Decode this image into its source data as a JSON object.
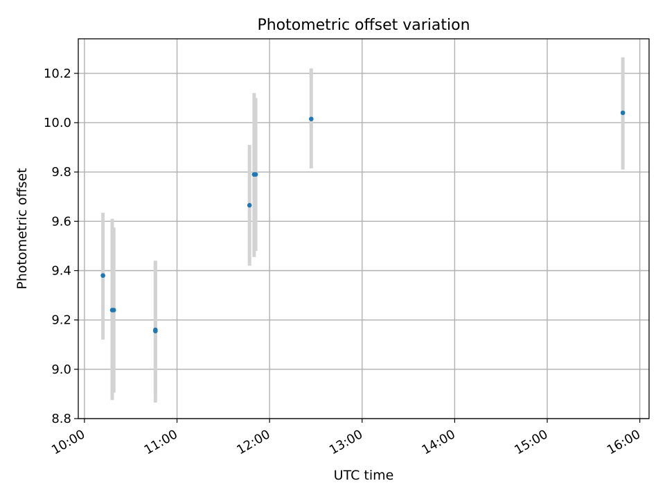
{
  "chart_data": {
    "type": "scatter",
    "title": "Photometric offset variation",
    "xlabel": "UTC time",
    "ylabel": "Photometric offset",
    "x_tick_labels": [
      "10:00",
      "11:00",
      "12:00",
      "13:00",
      "14:00",
      "15:00",
      "16:00"
    ],
    "x_tick_values": [
      "10:00",
      "11:00",
      "12:00",
      "13:00",
      "14:00",
      "15:00",
      "16:00"
    ],
    "y_tick_labels": [
      "8.8",
      "9.0",
      "9.2",
      "9.4",
      "9.6",
      "9.8",
      "10.0",
      "10.2"
    ],
    "xlim": [
      "09:56",
      "16:06"
    ],
    "ylim": [
      8.8,
      10.34
    ],
    "grid": true,
    "colors": {
      "points": "#1f77b4",
      "errorbars": "#d3d3d3",
      "grid": "#b0b0b0"
    },
    "points": [
      {
        "x": "10:12",
        "y": 9.38,
        "yerr": [
          9.12,
          9.635
        ]
      },
      {
        "x": "10:18",
        "y": 9.24,
        "yerr": [
          8.875,
          9.61
        ]
      },
      {
        "x": "10:19",
        "y": 9.24,
        "yerr": [
          8.905,
          9.575
        ]
      },
      {
        "x": "10:46",
        "y": 9.16,
        "yerr": [
          8.895,
          9.44
        ]
      },
      {
        "x": "10:46",
        "y": 9.155,
        "yerr": [
          8.865,
          9.44
        ]
      },
      {
        "x": "11:47",
        "y": 9.665,
        "yerr": [
          9.42,
          9.91
        ]
      },
      {
        "x": "11:50",
        "y": 9.79,
        "yerr": [
          9.455,
          10.12
        ]
      },
      {
        "x": "11:51",
        "y": 9.79,
        "yerr": [
          9.48,
          10.1
        ]
      },
      {
        "x": "12:27",
        "y": 10.015,
        "yerr": [
          9.815,
          10.22
        ]
      },
      {
        "x": "15:49",
        "y": 10.04,
        "yerr": [
          9.81,
          10.265
        ]
      }
    ]
  }
}
